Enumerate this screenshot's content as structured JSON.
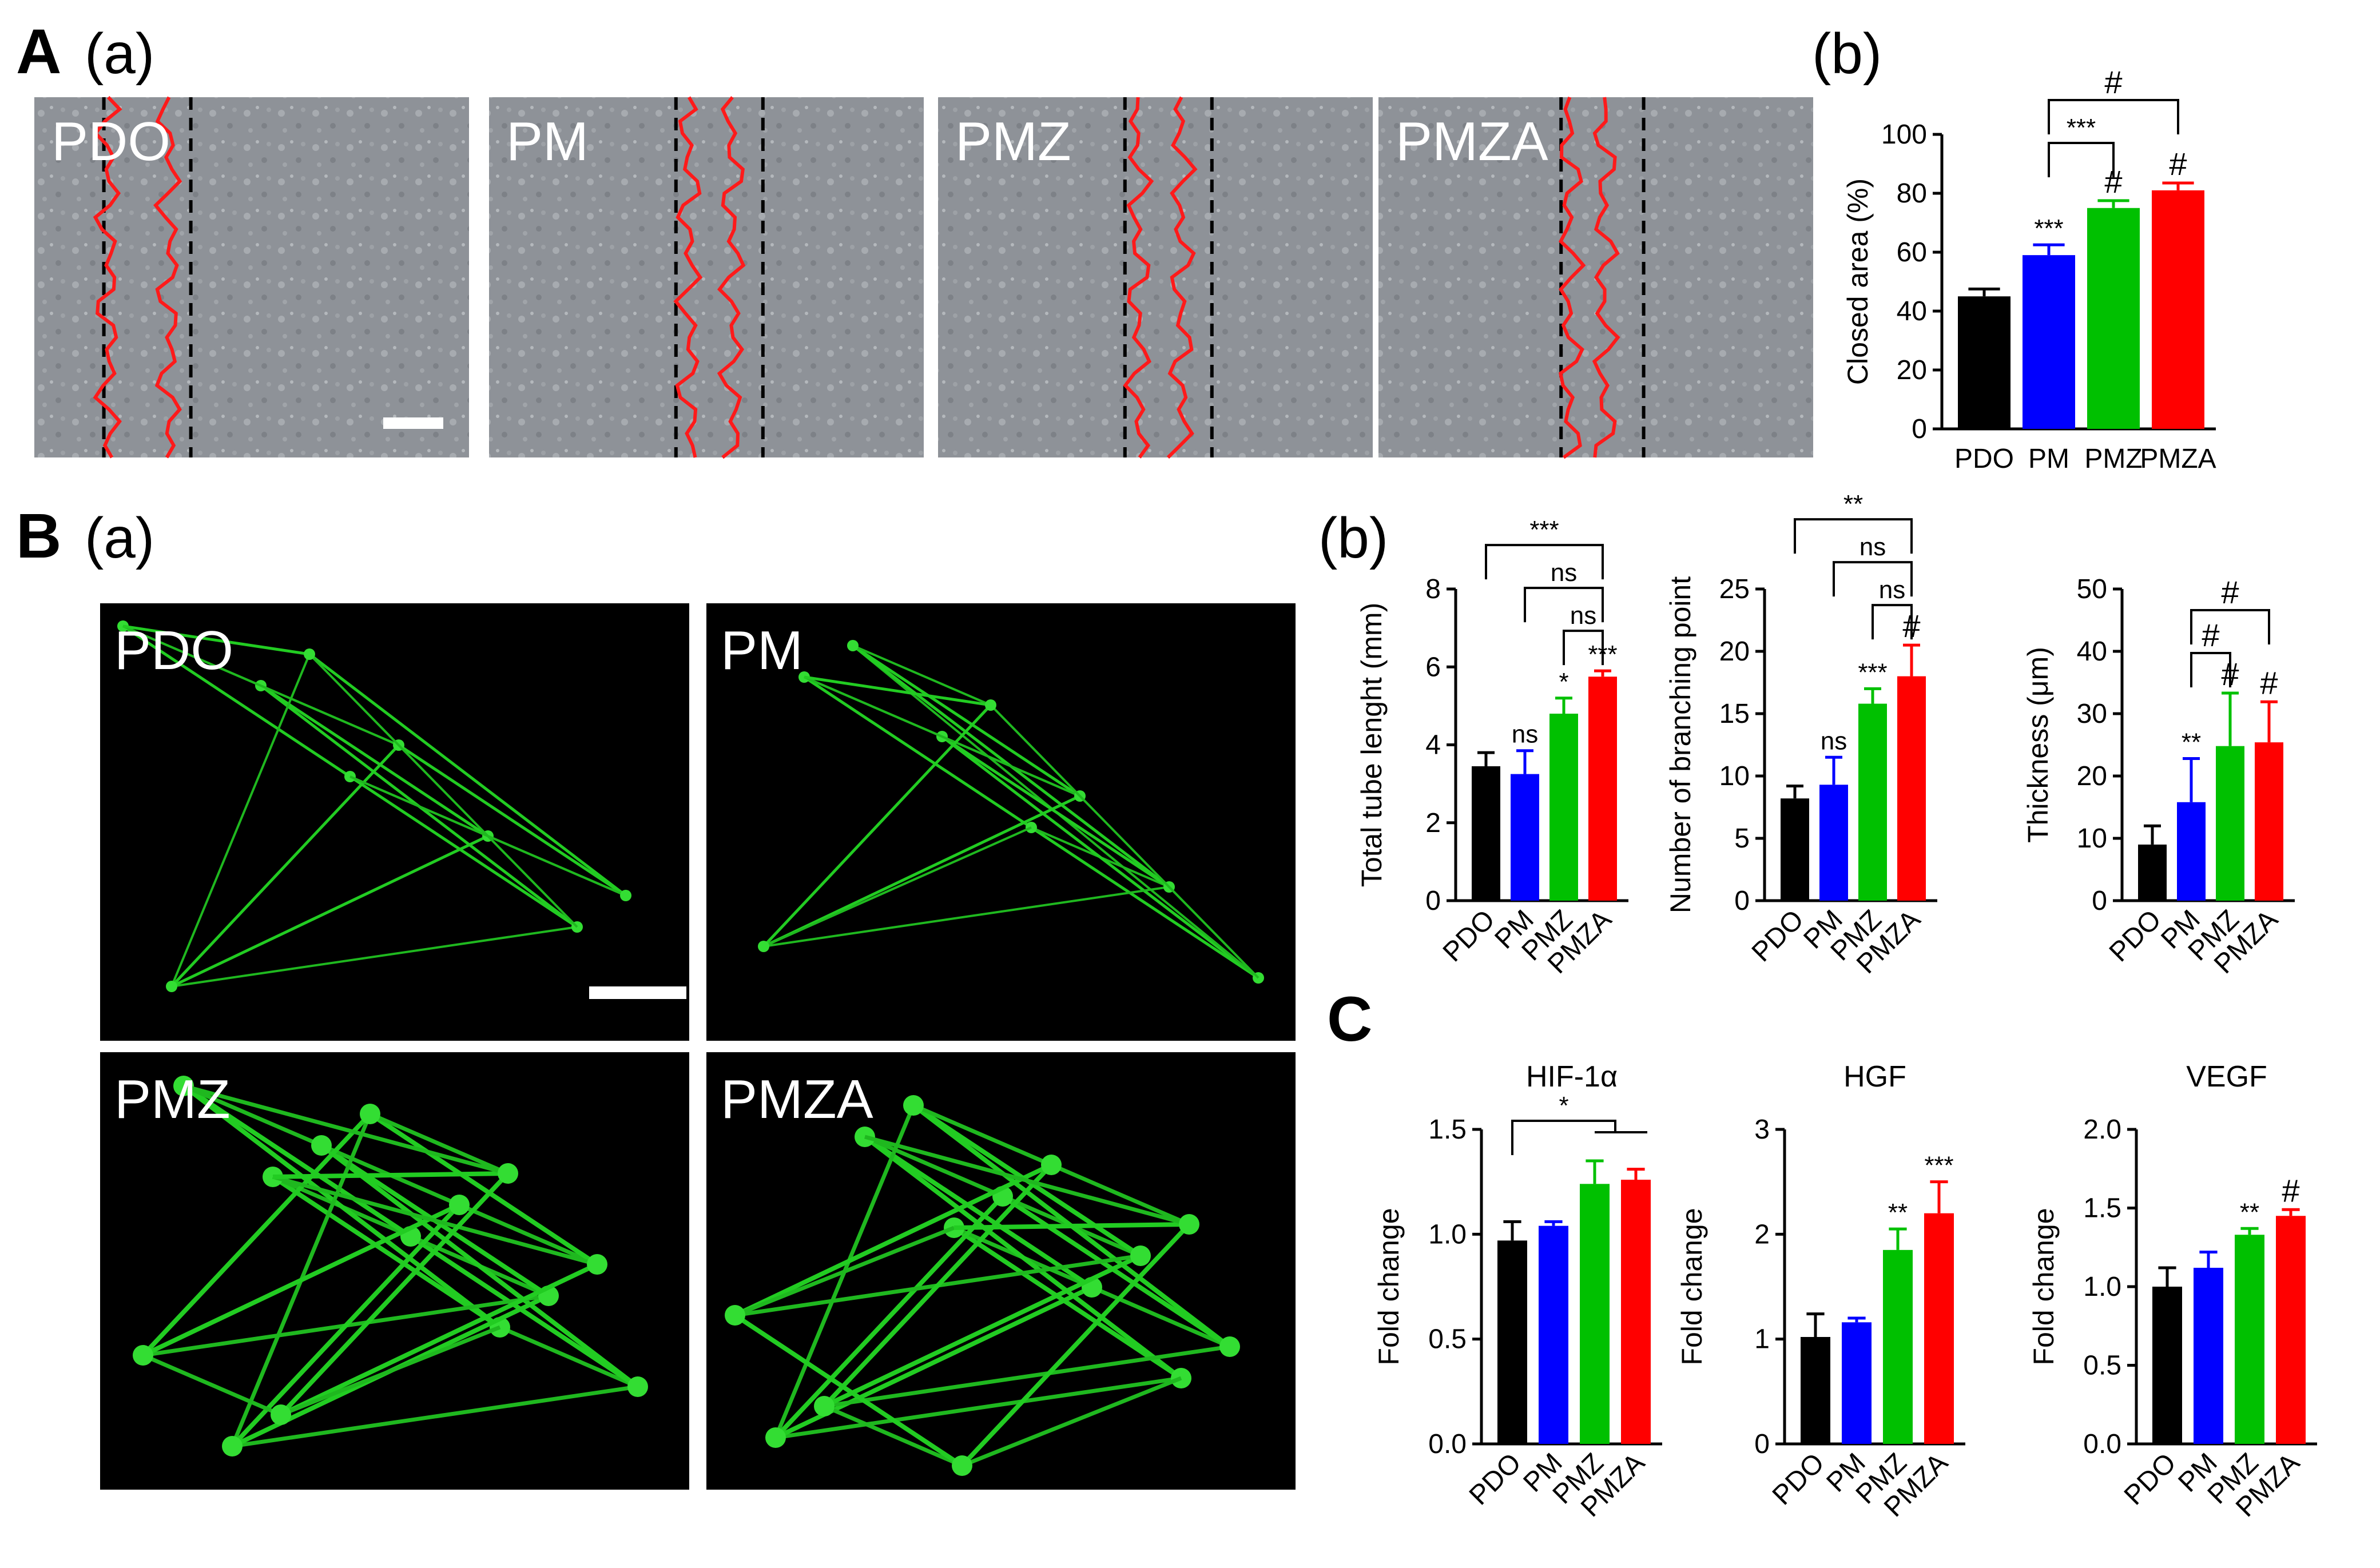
{
  "panels": {
    "A": {
      "letter": "A",
      "sub_a": "(a)",
      "sub_b": "(b)"
    },
    "B": {
      "letter": "B",
      "sub_a": "(a)",
      "sub_b": "(b)"
    },
    "C": {
      "letter": "C"
    }
  },
  "colors": {
    "PDO": "#000000",
    "PM": "#0000ff",
    "PMZ": "#00c000",
    "PMZA": "#ff0000"
  },
  "micrographs_A": [
    {
      "label": "PDO",
      "gap": [
        0.45,
        0.62
      ]
    },
    {
      "label": "PM",
      "gap": [
        0.55,
        0.72
      ]
    },
    {
      "label": "PMZ",
      "gap": [
        0.58,
        0.72
      ]
    },
    {
      "label": "PMZA",
      "gap": [
        0.55,
        0.65
      ]
    }
  ],
  "micrographs_B": [
    {
      "label": "PDO"
    },
    {
      "label": "PM"
    },
    {
      "label": "PMZ"
    },
    {
      "label": "PMZA"
    }
  ],
  "chart_data": [
    {
      "id": "A-b",
      "type": "bar",
      "categories": [
        "PDO",
        "PM",
        "PMZ",
        "PMZA"
      ],
      "values": [
        45,
        59,
        75,
        81
      ],
      "errors": [
        2.5,
        3.5,
        2.5,
        2.5
      ],
      "ylabel": "Closed area (%)",
      "ylim": [
        0,
        100
      ],
      "yticks": [
        "0",
        "20",
        "40",
        "60",
        "80",
        "100"
      ],
      "bar_labels": [
        "",
        "***",
        "#",
        "#"
      ],
      "brackets": [
        {
          "from": 1,
          "to": 2,
          "label": "***"
        },
        {
          "from": 1,
          "to": 3,
          "label": "#"
        }
      ],
      "rotate_x": false
    },
    {
      "id": "B-b1",
      "type": "bar",
      "categories": [
        "PDO",
        "PM",
        "PMZ",
        "PMZA"
      ],
      "values": [
        3.45,
        3.25,
        4.8,
        5.75
      ],
      "errors": [
        0.35,
        0.6,
        0.4,
        0.15
      ],
      "ylabel": "Total tube lenght (mm)",
      "ylim": [
        0,
        8
      ],
      "yticks": [
        "0",
        "2",
        "4",
        "6",
        "8"
      ],
      "bar_labels": [
        "",
        "ns",
        "*",
        "***"
      ],
      "brackets": [
        {
          "from": 2,
          "to": 3,
          "label": "ns"
        },
        {
          "from": 1,
          "to": 3,
          "label": "ns"
        },
        {
          "from": 0,
          "to": 3,
          "label": "***"
        }
      ],
      "rotate_x": true
    },
    {
      "id": "B-b2",
      "type": "bar",
      "categories": [
        "PDO",
        "PM",
        "PMZ",
        "PMZA"
      ],
      "values": [
        8.2,
        9.3,
        15.8,
        18
      ],
      "errors": [
        1.0,
        2.2,
        1.2,
        2.5
      ],
      "ylabel": "Number of branching point",
      "ylim": [
        0,
        25
      ],
      "yticks": [
        "0",
        "5",
        "10",
        "15",
        "20",
        "25"
      ],
      "bar_labels": [
        "",
        "ns",
        "***",
        "#"
      ],
      "brackets": [
        {
          "from": 2,
          "to": 3,
          "label": "ns"
        },
        {
          "from": 1,
          "to": 3,
          "label": "ns"
        },
        {
          "from": 0,
          "to": 3,
          "label": "**"
        }
      ],
      "rotate_x": true
    },
    {
      "id": "B-b3",
      "type": "bar",
      "categories": [
        "PDO",
        "PM",
        "PMZ",
        "PMZA"
      ],
      "values": [
        9,
        15.8,
        24.8,
        25.4
      ],
      "errors": [
        3,
        7,
        8.5,
        6.5
      ],
      "ylabel": "Thickness (μm)",
      "ylim": [
        0,
        50
      ],
      "yticks": [
        "0",
        "10",
        "20",
        "30",
        "40",
        "50"
      ],
      "bar_labels": [
        "",
        "**",
        "#",
        "#"
      ],
      "brackets": [
        {
          "from": 1,
          "to": 2,
          "label": "#"
        },
        {
          "from": 1,
          "to": 3,
          "label": "#"
        }
      ],
      "rotate_x": true
    },
    {
      "id": "C-1",
      "type": "bar",
      "title": "HIF-1α",
      "categories": [
        "PDO",
        "PM",
        "PMZ",
        "PMZA"
      ],
      "values": [
        0.97,
        1.04,
        1.24,
        1.26
      ],
      "errors": [
        0.09,
        0.02,
        0.11,
        0.05
      ],
      "ylabel": "Fold change",
      "ylim": [
        0,
        1.5
      ],
      "yticks": [
        "0.0",
        "0.5",
        "1.0",
        "1.5"
      ],
      "bar_labels": [
        "",
        "",
        "",
        ""
      ],
      "brackets": [
        {
          "from": 0,
          "to": 2.5,
          "label": "*",
          "group": [
            2,
            3
          ]
        }
      ],
      "rotate_x": true
    },
    {
      "id": "C-2",
      "type": "bar",
      "title": "HGF",
      "categories": [
        "PDO",
        "PM",
        "PMZ",
        "PMZA"
      ],
      "values": [
        1.02,
        1.16,
        1.85,
        2.2
      ],
      "errors": [
        0.22,
        0.04,
        0.2,
        0.3
      ],
      "ylabel": "Fold change",
      "ylim": [
        0,
        3
      ],
      "yticks": [
        "0",
        "1",
        "2",
        "3"
      ],
      "bar_labels": [
        "",
        "",
        "**",
        "***"
      ],
      "brackets": [],
      "rotate_x": true
    },
    {
      "id": "C-3",
      "type": "bar",
      "title": "VEGF",
      "categories": [
        "PDO",
        "PM",
        "PMZ",
        "PMZA"
      ],
      "values": [
        1.0,
        1.12,
        1.33,
        1.45
      ],
      "errors": [
        0.12,
        0.1,
        0.04,
        0.04
      ],
      "ylabel": "Fold change",
      "ylim": [
        0,
        2
      ],
      "yticks": [
        "0.0",
        "0.5",
        "1.0",
        "1.5",
        "2.0"
      ],
      "bar_labels": [
        "",
        "",
        "**",
        "#"
      ],
      "brackets": [],
      "rotate_x": true
    }
  ]
}
